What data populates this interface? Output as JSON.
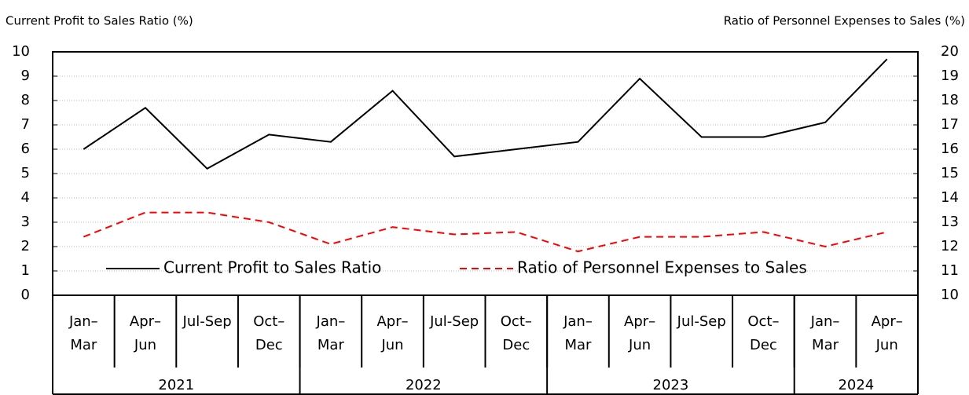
{
  "chart_data": {
    "type": "line",
    "y_axis_label": "Current Profit to Sales Ratio (%)",
    "y2_axis_label": "Ratio of Personnel Expenses to Sales  (%)",
    "categories": [
      [
        "Jan–",
        "Mar"
      ],
      [
        "Apr–",
        "Jun"
      ],
      [
        "Jul-Sep"
      ],
      [
        "Oct–",
        "Dec"
      ],
      [
        "Jan–",
        "Mar"
      ],
      [
        "Apr–",
        "Jun"
      ],
      [
        "Jul-Sep"
      ],
      [
        "Oct–",
        "Dec"
      ],
      [
        "Jan–",
        "Mar"
      ],
      [
        "Apr–",
        "Jun"
      ],
      [
        "Jul-Sep"
      ],
      [
        "Oct–",
        "Dec"
      ],
      [
        "Jan–",
        "Mar"
      ],
      [
        "Apr–",
        "Jun"
      ]
    ],
    "year_groups": [
      {
        "label": "2021",
        "count": 4
      },
      {
        "label": "2022",
        "count": 4
      },
      {
        "label": "2023",
        "count": 4
      },
      {
        "label": "2024",
        "count": 2
      }
    ],
    "ylim": [
      0,
      10
    ],
    "yticks": [
      0,
      1,
      2,
      3,
      4,
      5,
      6,
      7,
      8,
      9,
      10
    ],
    "y2lim": [
      10,
      20
    ],
    "y2ticks": [
      10,
      11,
      12,
      13,
      14,
      15,
      16,
      17,
      18,
      19,
      20
    ],
    "grid": true,
    "series": [
      {
        "name": "Current Profit to Sales Ratio",
        "color": "#000000",
        "dash": false,
        "values": [
          6.0,
          7.7,
          5.2,
          6.6,
          6.3,
          8.4,
          5.7,
          6.0,
          6.3,
          8.9,
          6.5,
          6.5,
          7.1,
          9.7
        ]
      },
      {
        "name": "Ratio of Personnel Expenses to Sales",
        "color": "#ff0000",
        "dash": true,
        "axis": "y2",
        "values": [
          12.4,
          13.4,
          13.4,
          13.0,
          12.1,
          12.8,
          12.5,
          12.6,
          11.8,
          12.4,
          12.4,
          12.6,
          12.0,
          12.6
        ]
      }
    ]
  }
}
